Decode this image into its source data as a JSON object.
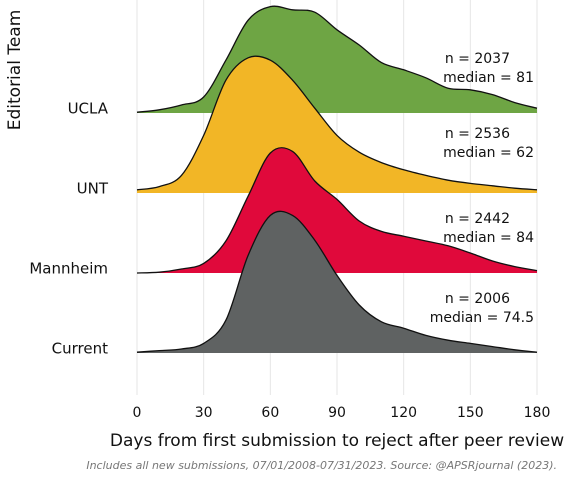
{
  "chart_data": {
    "type": "ridgeline",
    "y_axis_label": "Editorial Team",
    "x_axis_label": "Days from first submission to reject after peer review",
    "caption": "Includes all new submissions, 07/01/2008-07/31/2023. Source: @APSRjournal (2023).",
    "xlim": [
      0,
      180
    ],
    "xticks": [
      0,
      30,
      60,
      90,
      120,
      150,
      180
    ],
    "grid": true,
    "x": [
      0,
      10,
      20,
      30,
      40,
      50,
      60,
      70,
      80,
      90,
      100,
      110,
      120,
      130,
      140,
      150,
      160,
      170,
      180
    ],
    "series": [
      {
        "name": "UCLA",
        "color": "#6ea544",
        "annotation": [
          "n =  2037",
          "median = 81"
        ],
        "values": [
          0.01,
          0.04,
          0.1,
          0.2,
          0.66,
          1.16,
          1.33,
          1.29,
          1.26,
          1.04,
          0.85,
          0.63,
          0.54,
          0.44,
          0.31,
          0.29,
          0.23,
          0.13,
          0.06
        ]
      },
      {
        "name": "UNT",
        "color": "#f2b626",
        "annotation": [
          "n =  2536",
          "median = 62"
        ],
        "values": [
          0.04,
          0.08,
          0.22,
          0.72,
          1.41,
          1.69,
          1.66,
          1.41,
          1.06,
          0.72,
          0.51,
          0.38,
          0.29,
          0.22,
          0.16,
          0.12,
          0.09,
          0.06,
          0.04
        ]
      },
      {
        "name": "Mannheim",
        "color": "#e0093b",
        "annotation": [
          "n =  2442",
          "median = 84"
        ],
        "values": [
          0,
          0.01,
          0.05,
          0.12,
          0.4,
          0.96,
          1.5,
          1.52,
          1.15,
          0.92,
          0.65,
          0.52,
          0.46,
          0.4,
          0.34,
          0.25,
          0.15,
          0.08,
          0.03
        ]
      },
      {
        "name": "Current",
        "color": "#5f6262",
        "annotation": [
          "n =  2006",
          "median = 74.5"
        ],
        "values": [
          0.01,
          0.03,
          0.05,
          0.12,
          0.41,
          1.22,
          1.72,
          1.72,
          1.41,
          0.97,
          0.6,
          0.39,
          0.31,
          0.22,
          0.16,
          0.12,
          0.08,
          0.04,
          0.01
        ]
      }
    ]
  }
}
